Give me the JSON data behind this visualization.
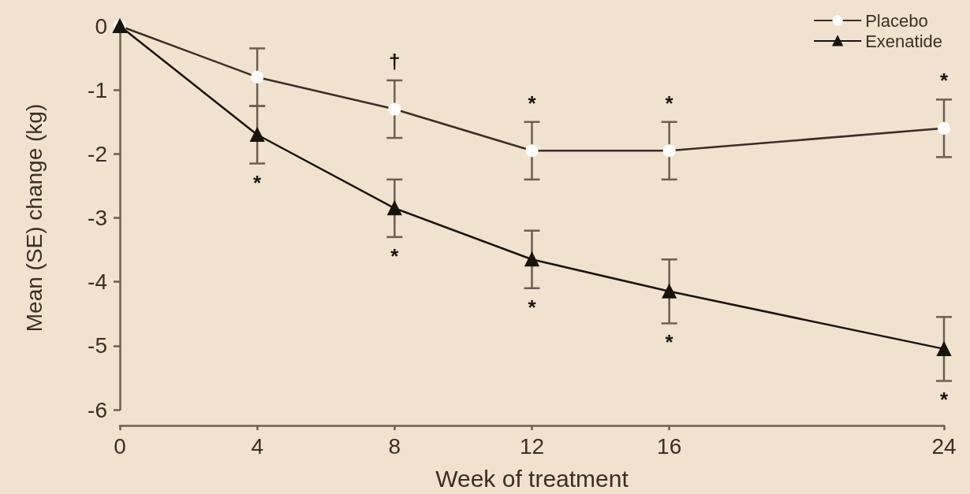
{
  "chart_data": {
    "type": "line",
    "xlabel": "Week of treatment",
    "ylabel": "Mean (SE) change (kg)",
    "xlim": [
      0,
      24
    ],
    "xticks": [
      0,
      4,
      8,
      12,
      16,
      24
    ],
    "ylim": [
      -6,
      0
    ],
    "yticks": [
      0,
      -1,
      -2,
      -3,
      -4,
      -5,
      -6
    ],
    "x": [
      0,
      4,
      8,
      12,
      16,
      24
    ],
    "grid": false,
    "legend": "top right",
    "line_style": "solid",
    "series": [
      {
        "name": "Placebo",
        "color": "#3a2e25",
        "marker": "circle",
        "values": [
          0,
          -0.8,
          -1.3,
          -1.95,
          -1.95,
          -1.6
        ],
        "errors": [
          null,
          0.45,
          0.45,
          0.45,
          0.45,
          0.45
        ]
      },
      {
        "name": "Exenatide",
        "color": "#1a1410",
        "marker": "triangle",
        "values": [
          0,
          -1.7,
          -2.85,
          -3.65,
          -4.15,
          -5.05
        ],
        "errors": [
          null,
          0.45,
          0.45,
          0.45,
          0.5,
          0.5
        ]
      }
    ],
    "annotations": [
      {
        "text": "†",
        "x": 8,
        "y": -1.3
      },
      {
        "text": "*",
        "x": 12,
        "y": -1.95
      },
      {
        "text": "*",
        "x": 16,
        "y": -1.95
      },
      {
        "text": "*",
        "x": 24,
        "y": -1.6
      },
      {
        "text": "*",
        "x": 4,
        "y": -1.7
      },
      {
        "text": "*",
        "x": 8,
        "y": -2.85
      },
      {
        "text": "*",
        "x": 12,
        "y": -3.65
      },
      {
        "text": "*",
        "x": 16,
        "y": -4.15
      },
      {
        "text": "*",
        "x": 24,
        "y": -5.05
      }
    ]
  }
}
